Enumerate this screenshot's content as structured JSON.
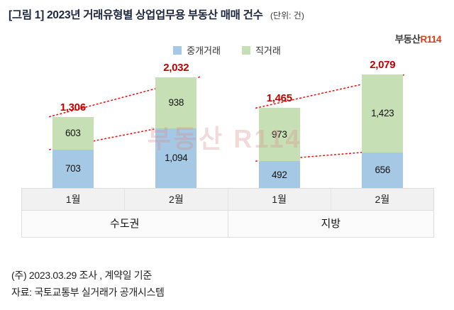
{
  "header": {
    "title": "[그림 1] 2023년 거래유형별 상업업무용 부동산 매매 건수",
    "unit": "(단위: 건)",
    "logo_black": "부동산",
    "logo_red": "R114"
  },
  "legend": [
    {
      "label": "중개거래",
      "color": "#a5c8e4"
    },
    {
      "label": "직거래",
      "color": "#c6dfb4"
    }
  ],
  "chart_data": {
    "type": "bar",
    "stacked": true,
    "title": "2023년 거래유형별 상업업무용 부동산 매매 건수",
    "unit": "건",
    "groups": [
      "수도권",
      "지방"
    ],
    "categories": [
      "1월",
      "2월",
      "1월",
      "2월"
    ],
    "series": [
      {
        "name": "중개거래",
        "color": "#a5c8e4",
        "values": [
          703,
          1094,
          492,
          656
        ],
        "values_formatted": [
          "703",
          "1,094",
          "492",
          "656"
        ]
      },
      {
        "name": "직거래",
        "color": "#c6dfb4",
        "values": [
          603,
          938,
          973,
          1423
        ],
        "values_formatted": [
          "603",
          "938",
          "973",
          "1,423"
        ]
      }
    ],
    "totals": [
      1306,
      2032,
      1465,
      2079
    ],
    "totals_formatted": [
      "1,306",
      "2,032",
      "1,465",
      "2,079"
    ],
    "total_label_color": "#c00000",
    "trend_line_color": "#ee1111",
    "legend_position": "top",
    "grid": false,
    "ylim": [
      0,
      2200
    ]
  },
  "watermark": "부동산 R114",
  "footer": {
    "note": "(주) 2023.03.29 조사 , 계약일 기준",
    "source": "자료: 국토교통부 실거래가 공개시스템"
  }
}
